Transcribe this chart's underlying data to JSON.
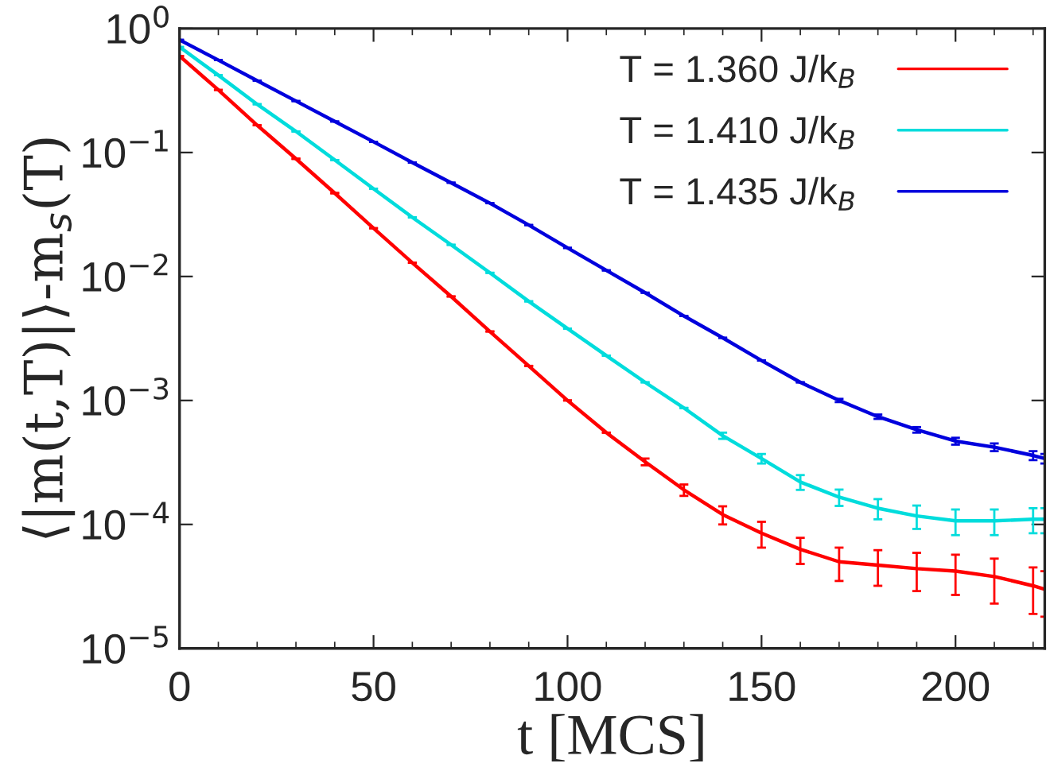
{
  "chart_data": {
    "type": "line",
    "xlabel": "t [MCS]",
    "ylabel": "⟨|m(t,T)|⟩-m$_{s}$(T)",
    "x": [
      0,
      10,
      20,
      30,
      40,
      50,
      60,
      70,
      80,
      90,
      100,
      110,
      120,
      130,
      140,
      150,
      160,
      170,
      180,
      190,
      200,
      210,
      220,
      223
    ],
    "log": "y",
    "xlim": [
      0,
      223
    ],
    "xticks": [
      0,
      50,
      100,
      150,
      200
    ],
    "ylim": [
      1e-05,
      1
    ],
    "yticks": [
      {
        "value": 1e-05,
        "label": "10$^{−5}$"
      },
      {
        "value": 0.0001,
        "label": "10$^{−4}$"
      },
      {
        "value": 0.001,
        "label": "10$^{−3}$"
      },
      {
        "value": 0.01,
        "label": "10$^{−2}$"
      },
      {
        "value": 0.1,
        "label": "10$^{−1}$"
      },
      {
        "value": 1,
        "label": "10$^{0}$"
      }
    ],
    "legend": "top right",
    "grid": false,
    "series": [
      {
        "name": "T = 1.360 J/k$_{B}$",
        "color": "#ff0000",
        "values": [
          0.6,
          0.32,
          0.166,
          0.089,
          0.047,
          0.0245,
          0.0129,
          0.0069,
          0.0036,
          0.0019,
          0.001,
          0.00055,
          0.00032,
          0.00019,
          0.00012,
          8.5e-05,
          6.3e-05,
          5e-05,
          4.7e-05,
          4.4e-05,
          4.2e-05,
          3.8e-05,
          3.2e-05,
          3e-05
        ],
        "errors": [
          null,
          null,
          null,
          null,
          null,
          null,
          null,
          null,
          null,
          null,
          null,
          null,
          2e-05,
          2e-05,
          2e-05,
          2e-05,
          1.5e-05,
          1.5e-05,
          1.5e-05,
          1.5e-05,
          1.5e-05,
          1.5e-05,
          1.3e-05,
          1.2e-05
        ]
      },
      {
        "name": "T = 1.410 J/k$_{B}$",
        "color": "#00dcdc",
        "values": [
          0.71,
          0.42,
          0.245,
          0.148,
          0.087,
          0.051,
          0.03,
          0.018,
          0.0107,
          0.0063,
          0.0038,
          0.0023,
          0.0014,
          0.00087,
          0.00052,
          0.00034,
          0.00022,
          0.000166,
          0.000135,
          0.000117,
          0.000107,
          0.000107,
          0.00011,
          0.00011
        ],
        "errors": [
          null,
          null,
          null,
          null,
          null,
          null,
          null,
          null,
          null,
          null,
          null,
          null,
          null,
          null,
          3e-05,
          3e-05,
          3e-05,
          2.5e-05,
          2.5e-05,
          2.5e-05,
          2.5e-05,
          2.5e-05,
          2.5e-05,
          2.5e-05
        ]
      },
      {
        "name": "T = 1.435 J/k$_{B}$",
        "color": "#0000dd",
        "values": [
          0.81,
          0.556,
          0.38,
          0.26,
          0.178,
          0.122,
          0.083,
          0.057,
          0.039,
          0.026,
          0.017,
          0.0112,
          0.0074,
          0.0048,
          0.0032,
          0.0021,
          0.0014,
          0.001,
          0.00074,
          0.00058,
          0.00047,
          0.00042,
          0.00036,
          0.00034
        ],
        "errors": [
          null,
          null,
          null,
          null,
          null,
          null,
          null,
          null,
          null,
          null,
          null,
          null,
          null,
          null,
          null,
          null,
          null,
          3e-05,
          3e-05,
          3e-05,
          3e-05,
          3e-05,
          3e-05,
          3e-05
        ]
      }
    ]
  }
}
